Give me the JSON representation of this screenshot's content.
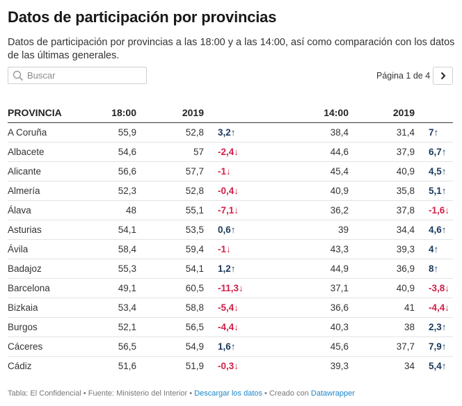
{
  "header": {
    "title": "Datos de participación por provincias",
    "subtitle": "Datos de participación por provincias a las 18:00 y a las 14:00, así como comparación con los datos de las últimas generales."
  },
  "search": {
    "placeholder": "Buscar"
  },
  "pagination": {
    "label": "Página 1 de 4"
  },
  "table": {
    "columns": [
      "PROVINCIA",
      "18:00",
      "2019",
      "",
      "14:00",
      "2019",
      ""
    ],
    "rows": [
      {
        "provincia": "A Coruña",
        "h18": "55,9",
        "y2019a": "52,8",
        "diff1": "3,2↑",
        "dir1": "up",
        "h14": "38,4",
        "y2019b": "31,4",
        "diff2": "7↑",
        "dir2": "up"
      },
      {
        "provincia": "Albacete",
        "h18": "54,6",
        "y2019a": "57",
        "diff1": "-2,4↓",
        "dir1": "down",
        "h14": "44,6",
        "y2019b": "37,9",
        "diff2": "6,7↑",
        "dir2": "up"
      },
      {
        "provincia": "Alicante",
        "h18": "56,6",
        "y2019a": "57,7",
        "diff1": "-1↓",
        "dir1": "down",
        "h14": "45,4",
        "y2019b": "40,9",
        "diff2": "4,5↑",
        "dir2": "up"
      },
      {
        "provincia": "Almería",
        "h18": "52,3",
        "y2019a": "52,8",
        "diff1": "-0,4↓",
        "dir1": "down",
        "h14": "40,9",
        "y2019b": "35,8",
        "diff2": "5,1↑",
        "dir2": "up"
      },
      {
        "provincia": "Álava",
        "h18": "48",
        "y2019a": "55,1",
        "diff1": "-7,1↓",
        "dir1": "down",
        "h14": "36,2",
        "y2019b": "37,8",
        "diff2": "-1,6↓",
        "dir2": "down"
      },
      {
        "provincia": "Asturias",
        "h18": "54,1",
        "y2019a": "53,5",
        "diff1": "0,6↑",
        "dir1": "up",
        "h14": "39",
        "y2019b": "34,4",
        "diff2": "4,6↑",
        "dir2": "up"
      },
      {
        "provincia": "Ávila",
        "h18": "58,4",
        "y2019a": "59,4",
        "diff1": "-1↓",
        "dir1": "down",
        "h14": "43,3",
        "y2019b": "39,3",
        "diff2": "4↑",
        "dir2": "up"
      },
      {
        "provincia": "Badajoz",
        "h18": "55,3",
        "y2019a": "54,1",
        "diff1": "1,2↑",
        "dir1": "up",
        "h14": "44,9",
        "y2019b": "36,9",
        "diff2": "8↑",
        "dir2": "up"
      },
      {
        "provincia": "Barcelona",
        "h18": "49,1",
        "y2019a": "60,5",
        "diff1": "-11,3↓",
        "dir1": "down",
        "h14": "37,1",
        "y2019b": "40,9",
        "diff2": "-3,8↓",
        "dir2": "down"
      },
      {
        "provincia": "Bizkaia",
        "h18": "53,4",
        "y2019a": "58,8",
        "diff1": "-5,4↓",
        "dir1": "down",
        "h14": "36,6",
        "y2019b": "41",
        "diff2": "-4,4↓",
        "dir2": "down"
      },
      {
        "provincia": "Burgos",
        "h18": "52,1",
        "y2019a": "56,5",
        "diff1": "-4,4↓",
        "dir1": "down",
        "h14": "40,3",
        "y2019b": "38",
        "diff2": "2,3↑",
        "dir2": "up"
      },
      {
        "provincia": "Cáceres",
        "h18": "56,5",
        "y2019a": "54,9",
        "diff1": "1,6↑",
        "dir1": "up",
        "h14": "45,6",
        "y2019b": "37,7",
        "diff2": "7,9↑",
        "dir2": "up"
      },
      {
        "provincia": "Cádiz",
        "h18": "51,6",
        "y2019a": "51,9",
        "diff1": "-0,3↓",
        "dir1": "down",
        "h14": "39,3",
        "y2019b": "34",
        "diff2": "5,4↑",
        "dir2": "up"
      }
    ]
  },
  "footer": {
    "source": "Tabla: El Confidencial • Fuente: Ministerio del Interior • ",
    "download_link": "Descargar los datos",
    "created": " • Creado con ",
    "datawrapper_link": "Datawrapper"
  },
  "colors": {
    "positive": "#1a3a5c",
    "negative": "#d11f46",
    "link": "#1b86c7"
  },
  "icons": {
    "search": "search-icon",
    "next": "chevron-right-icon"
  }
}
